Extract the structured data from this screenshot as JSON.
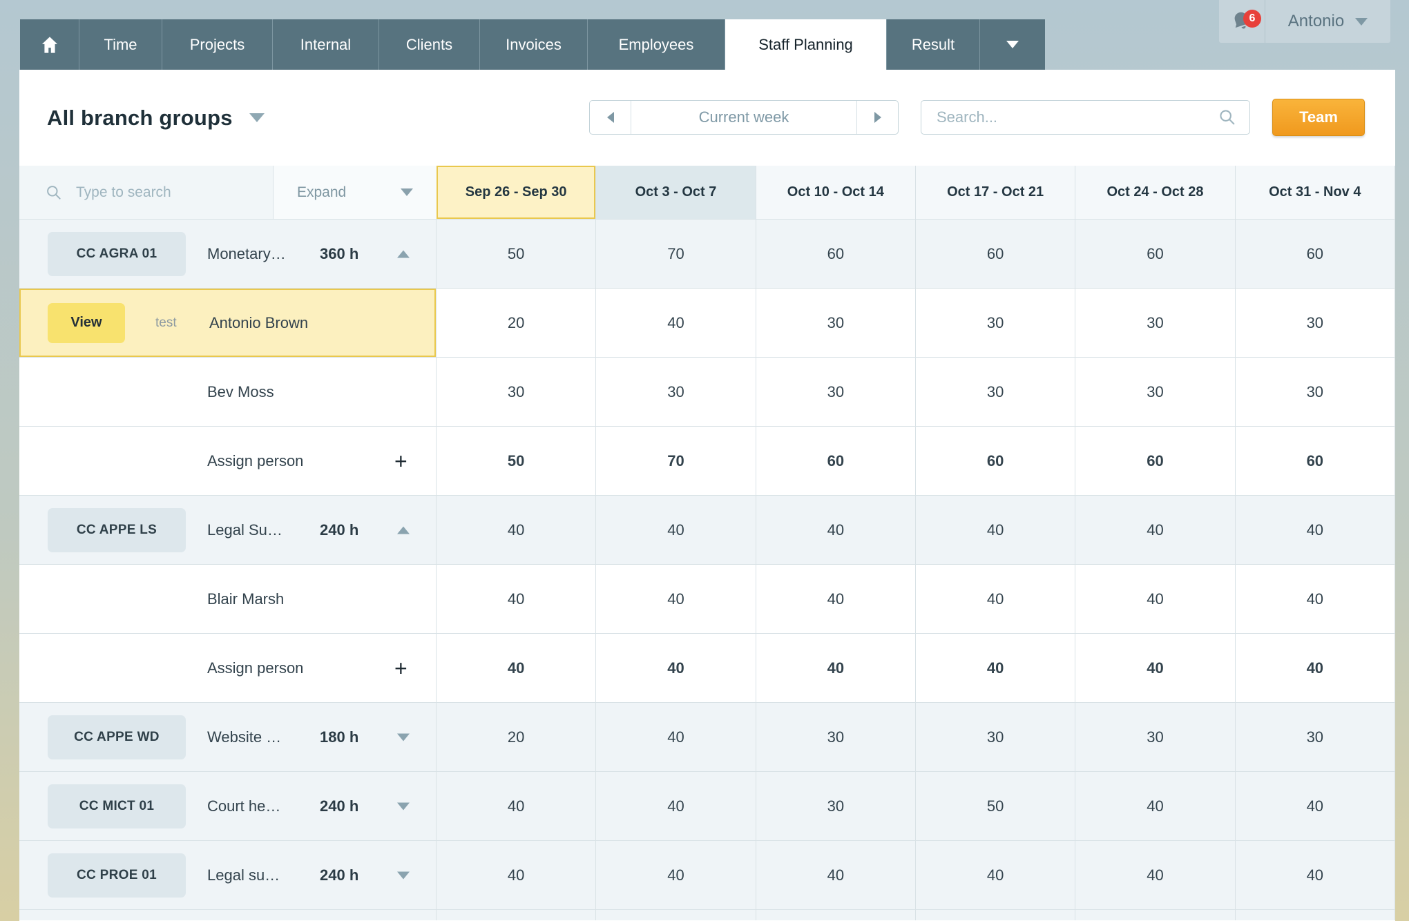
{
  "nav": {
    "tabs": [
      {
        "icon": "home"
      },
      {
        "label": "Time"
      },
      {
        "label": "Projects"
      },
      {
        "label": "Internal"
      },
      {
        "label": "Clients"
      },
      {
        "label": "Invoices"
      },
      {
        "label": "Employees"
      },
      {
        "label": "Staff Planning",
        "active": true
      },
      {
        "label": "Result"
      },
      {
        "icon": "caret-down"
      }
    ]
  },
  "user": {
    "name": "Antonio",
    "notification_count": "6"
  },
  "toolbar": {
    "group_filter": "All branch groups",
    "week_nav_label": "Current week",
    "search_placeholder": "Search...",
    "team_button": "Team"
  },
  "planner": {
    "filter_placeholder": "Type to search",
    "expand_label": "Expand",
    "weeks": [
      {
        "label": "Sep 26 - Sep 30",
        "state": "selected"
      },
      {
        "label": "Oct 3 - Oct 7",
        "state": "shaded"
      },
      {
        "label": "Oct 10 - Oct 14",
        "state": ""
      },
      {
        "label": "Oct 17 - Oct 21",
        "state": ""
      },
      {
        "label": "Oct 24 - Oct 28",
        "state": ""
      },
      {
        "label": "Oct 31 - Nov 4",
        "state": ""
      }
    ],
    "rows": [
      {
        "type": "group",
        "code": "CC AGRA 01",
        "project": "Monetary…",
        "hours": "360 h",
        "arrow": "up",
        "values": [
          "50",
          "70",
          "60",
          "60",
          "60",
          "60"
        ],
        "bold_values": false
      },
      {
        "type": "person",
        "name": "Antonio Brown",
        "highlighted": true,
        "action": "View",
        "tag": "test",
        "values": [
          "20",
          "40",
          "30",
          "30",
          "30",
          "30"
        ],
        "bold_values": false
      },
      {
        "type": "person",
        "name": "Bev Moss",
        "values": [
          "30",
          "30",
          "30",
          "30",
          "30",
          "30"
        ],
        "bold_values": false
      },
      {
        "type": "assign",
        "label": "Assign person",
        "plus": "+",
        "values": [
          "50",
          "70",
          "60",
          "60",
          "60",
          "60"
        ],
        "bold_values": true
      },
      {
        "type": "group",
        "code": "CC APPE LS",
        "project": "Legal Su…",
        "hours": "240 h",
        "arrow": "up",
        "values": [
          "40",
          "40",
          "40",
          "40",
          "40",
          "40"
        ],
        "bold_values": false
      },
      {
        "type": "person",
        "name": "Blair Marsh",
        "values": [
          "40",
          "40",
          "40",
          "40",
          "40",
          "40"
        ],
        "bold_values": false
      },
      {
        "type": "assign",
        "label": "Assign person",
        "plus": "+",
        "values": [
          "40",
          "40",
          "40",
          "40",
          "40",
          "40"
        ],
        "bold_values": true
      },
      {
        "type": "group",
        "code": "CC APPE WD",
        "project": "Website …",
        "hours": "180 h",
        "arrow": "down",
        "values": [
          "20",
          "40",
          "30",
          "30",
          "30",
          "30"
        ],
        "bold_values": false
      },
      {
        "type": "group",
        "code": "CC MICT 01",
        "project": "Court he…",
        "hours": "240 h",
        "arrow": "down",
        "values": [
          "40",
          "40",
          "30",
          "50",
          "40",
          "40"
        ],
        "bold_values": false
      },
      {
        "type": "group",
        "code": "CC PROE 01",
        "project": "Legal su…",
        "hours": "240 h",
        "arrow": "down",
        "values": [
          "40",
          "40",
          "40",
          "40",
          "40",
          "40"
        ],
        "bold_values": false
      }
    ]
  },
  "colors": {
    "nav_tab": "#57737f",
    "selected_yellow_bg": "#fdf2c6",
    "selected_yellow_border": "#e9c84e",
    "view_button_yellow": "#f8e26e",
    "team_orange": "#f5a623",
    "badge_red": "#e8403a",
    "group_row_bg": "#eff4f7",
    "current_week_header_bg": "#dde8ec"
  }
}
